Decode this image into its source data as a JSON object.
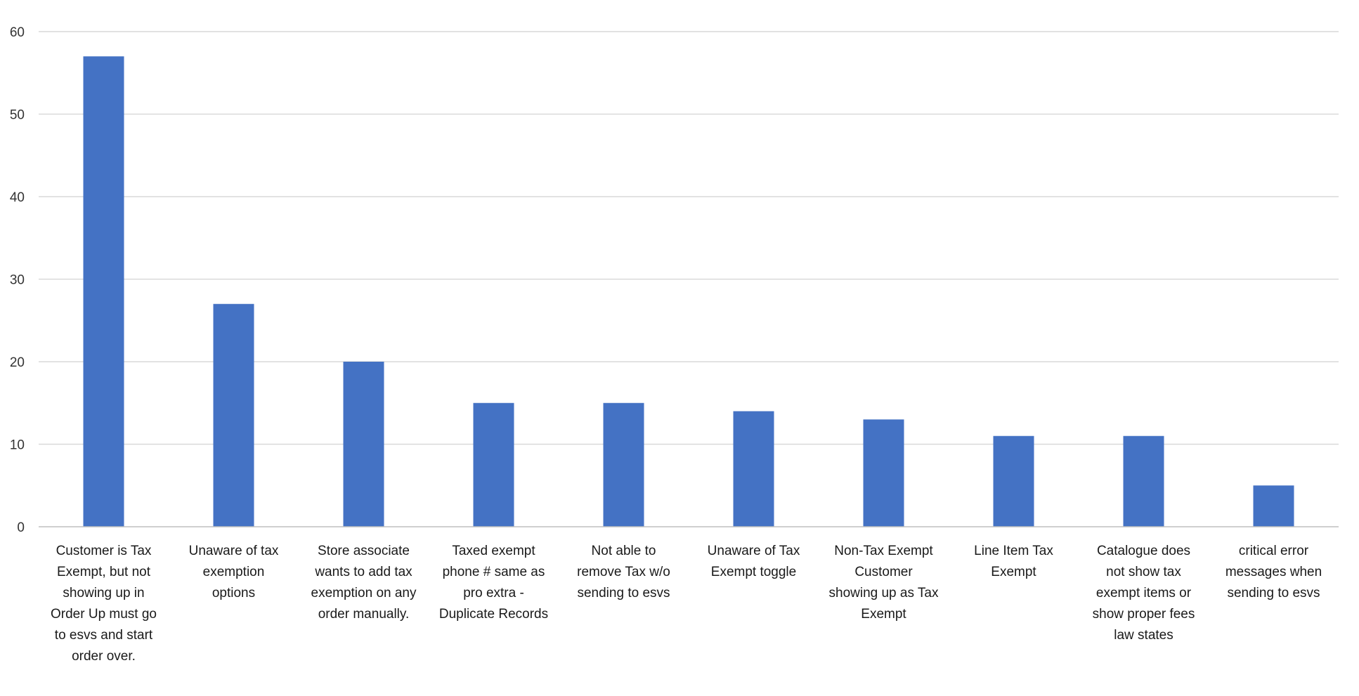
{
  "chart_data": {
    "type": "bar",
    "title": "",
    "xlabel": "",
    "ylabel": "",
    "ylim": [
      0,
      60
    ],
    "yticks": [
      0,
      10,
      20,
      30,
      40,
      50,
      60
    ],
    "grid": true,
    "legend": "none",
    "colors": {
      "bar": "#4472C4",
      "grid": "#D9D9D9",
      "axis": "#BFBFBF"
    },
    "categories": [
      [
        "Customer is Tax",
        "Exempt, but not",
        "showing up in",
        "Order Up must go",
        "to esvs and start",
        "order over."
      ],
      [
        "Unaware of tax",
        "exemption",
        "options"
      ],
      [
        "Store associate",
        "wants to add tax",
        "exemption on any",
        "order manually."
      ],
      [
        "Taxed exempt",
        "phone # same as",
        "pro extra -",
        "Duplicate Records"
      ],
      [
        "Not able to",
        "remove Tax w/o",
        "sending to esvs"
      ],
      [
        "Unaware of Tax",
        "Exempt toggle"
      ],
      [
        "Non-Tax Exempt",
        "Customer",
        "showing up as Tax",
        "Exempt"
      ],
      [
        "Line Item Tax",
        "Exempt"
      ],
      [
        "Catalogue does",
        "not show tax",
        "exempt items or",
        "show proper fees",
        "law states"
      ],
      [
        "critical error",
        "messages when",
        "sending to esvs"
      ]
    ],
    "values": [
      57,
      27,
      20,
      15,
      15,
      14,
      13,
      11,
      11,
      5
    ]
  }
}
